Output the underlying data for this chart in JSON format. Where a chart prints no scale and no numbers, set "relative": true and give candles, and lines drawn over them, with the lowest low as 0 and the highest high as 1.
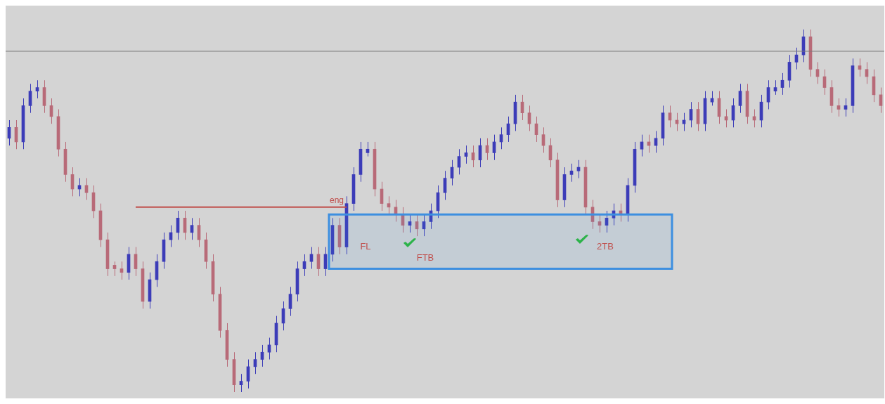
{
  "chart_data": {
    "type": "candlestick",
    "relative": true,
    "categories": [
      null,
      null,
      null,
      null,
      null,
      null,
      null,
      null,
      null,
      null,
      null,
      null,
      null,
      null,
      null,
      null,
      null,
      null,
      null,
      null,
      null,
      null,
      null,
      null,
      null,
      null,
      null,
      null,
      null,
      null,
      null,
      null,
      null,
      null,
      null,
      null,
      null,
      null,
      null,
      null,
      null,
      null,
      null,
      null,
      null,
      null,
      null,
      null,
      null,
      null,
      null,
      null,
      null,
      null,
      null,
      null,
      null,
      null,
      null,
      null,
      null,
      null,
      null,
      null,
      null,
      null,
      null,
      null,
      null,
      null,
      null,
      null,
      null,
      null,
      null,
      null,
      null,
      null,
      null,
      null,
      null,
      null,
      null,
      null,
      null,
      null,
      null,
      null,
      null,
      null,
      null,
      null,
      null,
      null,
      null,
      null,
      null,
      null,
      null,
      null,
      null,
      null,
      null,
      null,
      null,
      null,
      null,
      null,
      null,
      null,
      null,
      null,
      null,
      null,
      null,
      null,
      null,
      null,
      null,
      null,
      null,
      null,
      null,
      null,
      null
    ],
    "ohlc": [
      [
        0.7,
        0.75,
        0.68,
        0.73
      ],
      [
        0.73,
        0.75,
        0.67,
        0.69
      ],
      [
        0.69,
        0.81,
        0.67,
        0.79
      ],
      [
        0.79,
        0.85,
        0.77,
        0.83
      ],
      [
        0.83,
        0.86,
        0.81,
        0.84
      ],
      [
        0.84,
        0.86,
        0.77,
        0.79
      ],
      [
        0.79,
        0.81,
        0.74,
        0.76
      ],
      [
        0.76,
        0.78,
        0.65,
        0.67
      ],
      [
        0.67,
        0.69,
        0.58,
        0.6
      ],
      [
        0.6,
        0.62,
        0.54,
        0.56
      ],
      [
        0.56,
        0.59,
        0.54,
        0.57
      ],
      [
        0.57,
        0.59,
        0.53,
        0.55
      ],
      [
        0.55,
        0.57,
        0.48,
        0.5
      ],
      [
        0.5,
        0.52,
        0.4,
        0.42
      ],
      [
        0.42,
        0.44,
        0.32,
        0.34
      ],
      [
        0.35,
        0.36,
        0.32,
        0.34
      ],
      [
        0.34,
        0.36,
        0.31,
        0.33
      ],
      [
        0.33,
        0.4,
        0.31,
        0.38
      ],
      [
        0.38,
        0.4,
        0.32,
        0.34
      ],
      [
        0.34,
        0.36,
        0.23,
        0.25
      ],
      [
        0.25,
        0.33,
        0.23,
        0.31
      ],
      [
        0.31,
        0.38,
        0.29,
        0.36
      ],
      [
        0.36,
        0.44,
        0.34,
        0.42
      ],
      [
        0.42,
        0.46,
        0.4,
        0.44
      ],
      [
        0.44,
        0.5,
        0.42,
        0.48
      ],
      [
        0.48,
        0.5,
        0.42,
        0.44
      ],
      [
        0.44,
        0.48,
        0.42,
        0.46
      ],
      [
        0.46,
        0.48,
        0.4,
        0.42
      ],
      [
        0.42,
        0.44,
        0.34,
        0.36
      ],
      [
        0.36,
        0.38,
        0.25,
        0.27
      ],
      [
        0.27,
        0.29,
        0.15,
        0.17
      ],
      [
        0.17,
        0.19,
        0.07,
        0.09
      ],
      [
        0.09,
        0.11,
        0,
        0.02
      ],
      [
        0.02,
        0.05,
        0,
        0.03
      ],
      [
        0.03,
        0.09,
        0.01,
        0.07
      ],
      [
        0.07,
        0.11,
        0.05,
        0.09
      ],
      [
        0.09,
        0.13,
        0.07,
        0.11
      ],
      [
        0.11,
        0.15,
        0.09,
        0.13
      ],
      [
        0.13,
        0.21,
        0.11,
        0.19
      ],
      [
        0.19,
        0.25,
        0.17,
        0.23
      ],
      [
        0.23,
        0.29,
        0.21,
        0.27
      ],
      [
        0.27,
        0.36,
        0.25,
        0.34
      ],
      [
        0.34,
        0.38,
        0.32,
        0.36
      ],
      [
        0.36,
        0.4,
        0.34,
        0.38
      ],
      [
        0.38,
        0.4,
        0.32,
        0.34
      ],
      [
        0.34,
        0.4,
        0.32,
        0.38
      ],
      [
        0.38,
        0.48,
        0.36,
        0.46
      ],
      [
        0.46,
        0.48,
        0.38,
        0.4
      ],
      [
        0.4,
        0.54,
        0.38,
        0.52
      ],
      [
        0.52,
        0.62,
        0.5,
        0.6
      ],
      [
        0.6,
        0.69,
        0.58,
        0.67
      ],
      [
        0.66,
        0.69,
        0.65,
        0.67
      ],
      [
        0.67,
        0.69,
        0.54,
        0.56
      ],
      [
        0.56,
        0.58,
        0.5,
        0.52
      ],
      [
        0.52,
        0.54,
        0.49,
        0.51
      ],
      [
        0.51,
        0.53,
        0.47,
        0.49
      ],
      [
        0.49,
        0.51,
        0.44,
        0.46
      ],
      [
        0.46,
        0.49,
        0.44,
        0.47
      ],
      [
        0.47,
        0.49,
        0.43,
        0.45
      ],
      [
        0.45,
        0.49,
        0.43,
        0.47
      ],
      [
        0.47,
        0.52,
        0.45,
        0.5
      ],
      [
        0.5,
        0.57,
        0.48,
        0.55
      ],
      [
        0.55,
        0.61,
        0.53,
        0.59
      ],
      [
        0.59,
        0.64,
        0.57,
        0.62
      ],
      [
        0.62,
        0.67,
        0.6,
        0.65
      ],
      [
        0.65,
        0.68,
        0.63,
        0.66
      ],
      [
        0.66,
        0.68,
        0.62,
        0.64
      ],
      [
        0.64,
        0.7,
        0.62,
        0.68
      ],
      [
        0.68,
        0.7,
        0.64,
        0.66
      ],
      [
        0.66,
        0.71,
        0.64,
        0.69
      ],
      [
        0.69,
        0.73,
        0.67,
        0.71
      ],
      [
        0.71,
        0.76,
        0.69,
        0.74
      ],
      [
        0.74,
        0.82,
        0.72,
        0.8
      ],
      [
        0.8,
        0.82,
        0.75,
        0.77
      ],
      [
        0.77,
        0.79,
        0.72,
        0.74
      ],
      [
        0.74,
        0.76,
        0.69,
        0.71
      ],
      [
        0.71,
        0.73,
        0.66,
        0.68
      ],
      [
        0.68,
        0.7,
        0.62,
        0.64
      ],
      [
        0.64,
        0.66,
        0.51,
        0.53
      ],
      [
        0.53,
        0.62,
        0.51,
        0.6
      ],
      [
        0.6,
        0.63,
        0.58,
        0.61
      ],
      [
        0.61,
        0.64,
        0.59,
        0.62
      ],
      [
        0.62,
        0.64,
        0.49,
        0.51
      ],
      [
        0.51,
        0.53,
        0.45,
        0.47
      ],
      [
        0.47,
        0.49,
        0.44,
        0.46
      ],
      [
        0.46,
        0.5,
        0.44,
        0.48
      ],
      [
        0.48,
        0.52,
        0.46,
        0.5
      ],
      [
        0.5,
        0.52,
        0.47,
        0.49
      ],
      [
        0.49,
        0.59,
        0.47,
        0.57
      ],
      [
        0.57,
        0.69,
        0.55,
        0.67
      ],
      [
        0.67,
        0.71,
        0.65,
        0.69
      ],
      [
        0.69,
        0.71,
        0.66,
        0.68
      ],
      [
        0.68,
        0.72,
        0.66,
        0.7
      ],
      [
        0.7,
        0.79,
        0.68,
        0.77
      ],
      [
        0.77,
        0.79,
        0.73,
        0.75
      ],
      [
        0.75,
        0.77,
        0.72,
        0.74
      ],
      [
        0.74,
        0.77,
        0.72,
        0.75
      ],
      [
        0.75,
        0.8,
        0.73,
        0.78
      ],
      [
        0.78,
        0.8,
        0.72,
        0.74
      ],
      [
        0.74,
        0.83,
        0.72,
        0.81
      ],
      [
        0.8,
        0.83,
        0.79,
        0.81
      ],
      [
        0.81,
        0.83,
        0.74,
        0.76
      ],
      [
        0.76,
        0.78,
        0.73,
        0.75
      ],
      [
        0.75,
        0.81,
        0.73,
        0.79
      ],
      [
        0.79,
        0.85,
        0.77,
        0.83
      ],
      [
        0.83,
        0.85,
        0.74,
        0.76
      ],
      [
        0.76,
        0.78,
        0.73,
        0.75
      ],
      [
        0.75,
        0.82,
        0.73,
        0.8
      ],
      [
        0.8,
        0.86,
        0.78,
        0.84
      ],
      [
        0.83,
        0.86,
        0.82,
        0.84
      ],
      [
        0.84,
        0.88,
        0.82,
        0.86
      ],
      [
        0.86,
        0.93,
        0.84,
        0.91
      ],
      [
        0.91,
        0.95,
        0.89,
        0.93
      ],
      [
        0.93,
        1,
        0.91,
        0.98
      ],
      [
        0.98,
        1,
        0.87,
        0.89
      ],
      [
        0.89,
        0.91,
        0.85,
        0.87
      ],
      [
        0.87,
        0.89,
        0.82,
        0.84
      ],
      [
        0.84,
        0.86,
        0.77,
        0.79
      ],
      [
        0.79,
        0.81,
        0.76,
        0.78
      ],
      [
        0.78,
        0.81,
        0.76,
        0.79
      ],
      [
        0.79,
        0.92,
        0.77,
        0.9
      ],
      [
        0.9,
        0.92,
        0.87,
        0.89
      ],
      [
        0.89,
        0.91,
        0.85,
        0.87
      ],
      [
        0.87,
        0.89,
        0.8,
        0.82
      ],
      [
        0.82,
        0.84,
        0.77,
        0.79
      ]
    ],
    "ref_lines": [
      {
        "axis": "y",
        "value": 0.94,
        "color": "#7a7a7a"
      },
      {
        "axis": "y",
        "value": 0.51,
        "label": "eng",
        "color": "#c0504d"
      }
    ],
    "bands": [
      {
        "axis": "y",
        "from": 0.34,
        "to": 0.49,
        "color": "#3d8fe0"
      }
    ],
    "annotations": [
      "FL",
      "FTB",
      "2TB"
    ],
    "legend": false
  }
}
